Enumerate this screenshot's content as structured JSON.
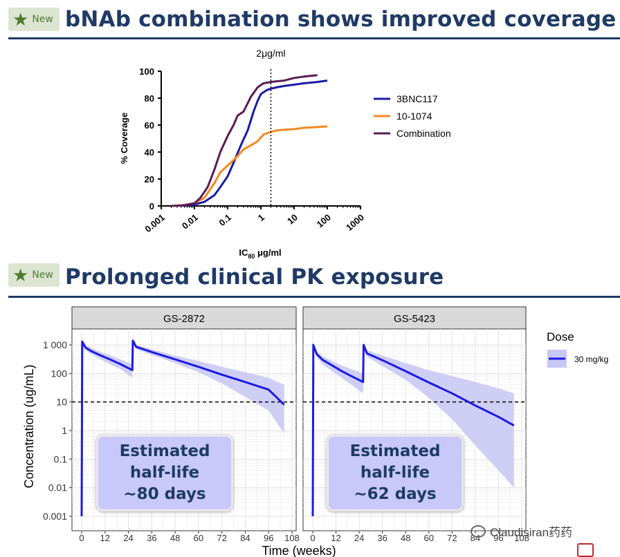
{
  "section1": {
    "badge_label": "New",
    "title": "bNAb combination shows improved coverage"
  },
  "section2": {
    "badge_label": "New",
    "title": "Prolonged clinical PK exposure"
  },
  "watermark": "Claudisiran药药",
  "chart_data": [
    {
      "type": "line",
      "title": "",
      "xlabel": "IC80 μg/ml",
      "xlabel_main": "IC",
      "xlabel_sub": "80",
      "xlabel_unit": "μg/ml",
      "ylabel": "% Coverage",
      "x_scale": "log",
      "xlim": [
        0.001,
        1000
      ],
      "ylim": [
        0,
        100
      ],
      "x_ticks": [
        "0.001",
        "0.01",
        "0.1",
        "1",
        "10",
        "100",
        "1000"
      ],
      "y_ticks": [
        "0",
        "20",
        "40",
        "60",
        "80",
        "100"
      ],
      "annotation": {
        "x": 2,
        "label": "2μg/ml",
        "style": "dotted vertical line"
      },
      "legend_position": "right",
      "series": [
        {
          "name": "3BNC117",
          "color": "#1a1aa6",
          "x": [
            0.003,
            0.01,
            0.02,
            0.04,
            0.06,
            0.1,
            0.15,
            0.25,
            0.4,
            0.6,
            0.8,
            1.0,
            1.5,
            2,
            3,
            5,
            10,
            20,
            50,
            100
          ],
          "y": [
            0,
            1,
            3,
            8,
            14,
            22,
            32,
            45,
            56,
            70,
            78,
            83,
            86,
            87,
            88,
            89,
            90,
            91,
            92,
            93
          ]
        },
        {
          "name": "10-1074",
          "color": "#f28a1e",
          "x": [
            0.003,
            0.01,
            0.02,
            0.04,
            0.06,
            0.1,
            0.15,
            0.2,
            0.3,
            0.5,
            0.8,
            1.2,
            2,
            3,
            5,
            10,
            20,
            50,
            100
          ],
          "y": [
            0,
            2,
            6,
            17,
            25,
            30,
            34,
            37,
            42,
            45,
            48,
            53,
            55,
            56,
            56.5,
            57,
            58,
            58.5,
            59
          ]
        },
        {
          "name": "Combination",
          "color": "#5b1a55",
          "x": [
            0.002,
            0.005,
            0.01,
            0.015,
            0.025,
            0.04,
            0.06,
            0.1,
            0.15,
            0.2,
            0.3,
            0.5,
            0.8,
            1.2,
            2,
            3,
            5,
            10,
            20,
            50
          ],
          "y": [
            0,
            0.5,
            2,
            6,
            14,
            27,
            40,
            52,
            60,
            67,
            70,
            81,
            88,
            91,
            92,
            92.5,
            93,
            95,
            96,
            97
          ]
        }
      ]
    },
    {
      "type": "line",
      "title": "",
      "xlabel": "Time (weeks)",
      "ylabel": "Concentration (ug/mL)",
      "y_scale": "log",
      "ylim": [
        0.001,
        1000
      ],
      "xlim": [
        0,
        108
      ],
      "x_ticks": [
        "0",
        "12",
        "24",
        "36",
        "48",
        "60",
        "72",
        "84",
        "96",
        "108"
      ],
      "y_ticks": [
        "1 000",
        "100",
        "10",
        "1",
        "0.1",
        "0.01",
        "0.001"
      ],
      "reference_line": {
        "y": 10,
        "style": "dashed"
      },
      "legend": {
        "title": "Dose",
        "label": "30 mg/kg",
        "color": "#1a1ae6",
        "band_color": "#c7c7f5"
      },
      "legend_position": "right",
      "panels": [
        {
          "title": "GS-2872",
          "annotation": [
            "Estimated",
            "half-life",
            "~80 days"
          ],
          "series": [
            {
              "name": "30 mg/kg",
              "x": [
                0,
                0.3,
                2,
                5,
                10,
                15,
                20,
                26,
                26.3,
                28,
                36,
                48,
                60,
                72,
                84,
                96,
                104
              ],
              "y": [
                0.001,
                1300,
                800,
                600,
                420,
                300,
                210,
                130,
                1400,
                850,
                560,
                310,
                170,
                90,
                50,
                27,
                8
              ]
            }
          ],
          "band_upper": [
            0.001,
            1500,
            1000,
            780,
            560,
            420,
            310,
            210,
            1600,
            1000,
            700,
            420,
            270,
            170,
            110,
            70,
            40
          ],
          "band_lower": [
            0.001,
            1100,
            640,
            470,
            300,
            200,
            140,
            70,
            1200,
            700,
            440,
            230,
            110,
            45,
            15,
            5,
            0.8
          ]
        },
        {
          "title": "GS-5423",
          "annotation": [
            "Estimated",
            "half-life",
            "~62 days"
          ],
          "series": [
            {
              "name": "30 mg/kg",
              "x": [
                0,
                0.3,
                2,
                5,
                10,
                15,
                20,
                26,
                26.3,
                28,
                36,
                48,
                60,
                72,
                84,
                96,
                104
              ],
              "y": [
                0.001,
                1000,
                480,
                300,
                190,
                120,
                80,
                50,
                1000,
                500,
                290,
                120,
                48,
                20,
                7.5,
                3,
                1.5
              ]
            }
          ],
          "band_upper": [
            0.001,
            1100,
            600,
            400,
            270,
            190,
            140,
            100,
            1100,
            650,
            420,
            230,
            130,
            80,
            50,
            30,
            20
          ],
          "band_lower": [
            0.001,
            900,
            380,
            210,
            120,
            70,
            40,
            20,
            900,
            380,
            180,
            60,
            14,
            2.5,
            0.3,
            0.04,
            0.01
          ]
        }
      ]
    }
  ]
}
